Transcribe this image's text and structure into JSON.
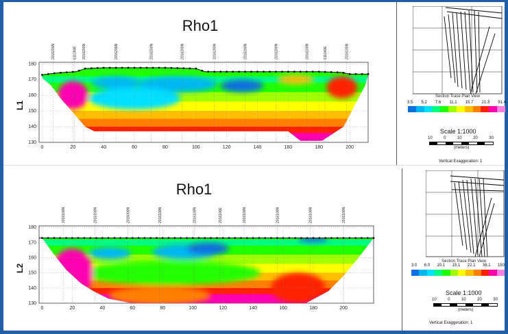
{
  "colors": {
    "background_frame": "#1f5fa8",
    "palette": [
      "#00b7f2",
      "#0a6fe0",
      "#0000c8",
      "#00e0ff",
      "#00ff80",
      "#20ff00",
      "#a0ff00",
      "#ffff00",
      "#ffbf00",
      "#ff8000",
      "#ff2000",
      "#ff00b0",
      "#ff80e0"
    ]
  },
  "chart_data": [
    {
      "type": "heatmap",
      "title": "Rho1",
      "ylabel": "L1",
      "xlabel": "",
      "x_ticks": [
        "0",
        "20",
        "40",
        "60",
        "80",
        "100",
        "120",
        "140",
        "160",
        "180",
        "200"
      ],
      "y_ticks": [
        "130",
        "140",
        "150",
        "160",
        "170",
        "180"
      ],
      "xlim": [
        -2,
        212
      ],
      "ylim": [
        130,
        181
      ],
      "station_labels": [
        "2016234N",
        "611280E",
        "2016200N",
        "2016200N",
        "2016200N",
        "2016200N",
        "2016240N",
        "2016200N",
        "2016200N",
        "2016100N",
        "611240E",
        "2016100N"
      ],
      "station_x": [
        7,
        21,
        27,
        48,
        71,
        91,
        112,
        132,
        152,
        172,
        184,
        198
      ],
      "surface": [
        [
          0,
          173
        ],
        [
          8,
          174
        ],
        [
          14,
          174.5
        ],
        [
          22,
          175
        ],
        [
          28,
          177
        ],
        [
          40,
          177.5
        ],
        [
          60,
          177.5
        ],
        [
          80,
          177.5
        ],
        [
          100,
          177
        ],
        [
          106,
          175
        ],
        [
          120,
          175
        ],
        [
          140,
          175
        ],
        [
          160,
          175
        ],
        [
          180,
          175
        ],
        [
          195,
          174.5
        ],
        [
          200,
          173.5
        ],
        [
          212,
          173.5
        ]
      ],
      "bottom": [
        [
          0,
          171
        ],
        [
          6,
          166
        ],
        [
          12,
          158
        ],
        [
          20,
          149
        ],
        [
          28,
          140
        ],
        [
          34,
          137
        ],
        [
          100,
          137
        ],
        [
          160,
          137
        ],
        [
          168,
          131
        ],
        [
          182,
          131
        ],
        [
          196,
          140
        ],
        [
          204,
          155
        ],
        [
          210,
          166
        ],
        [
          212,
          173
        ]
      ],
      "anomalies": [
        {
          "x": 48,
          "y": 168,
          "rx": 16,
          "ry": 4,
          "level": 0
        },
        {
          "x": 88,
          "y": 167,
          "rx": 26,
          "ry": 5,
          "level": 0
        },
        {
          "x": 130,
          "y": 166,
          "rx": 14,
          "ry": 4,
          "level": 1
        },
        {
          "x": 60,
          "y": 158,
          "rx": 30,
          "ry": 7,
          "level": 3
        },
        {
          "x": 165,
          "y": 170,
          "rx": 12,
          "ry": 3,
          "level": 8
        },
        {
          "x": 195,
          "y": 165,
          "rx": 10,
          "ry": 7,
          "level": 10
        },
        {
          "x": 20,
          "y": 160,
          "rx": 10,
          "ry": 9,
          "level": 11
        }
      ]
    },
    {
      "type": "heatmap",
      "title": "Rho1",
      "ylabel": "L2",
      "xlabel": "",
      "x_ticks": [
        "0",
        "20",
        "40",
        "60",
        "80",
        "100",
        "120",
        "140",
        "160",
        "180",
        "200"
      ],
      "y_ticks": [
        "130",
        "140",
        "150",
        "160",
        "170",
        "180"
      ],
      "xlim": [
        -2,
        220
      ],
      "ylim": [
        130,
        181
      ],
      "station_labels": [
        "2016100N",
        "2016100N",
        "2016000N",
        "2016100N",
        "2016100N",
        "2016100E",
        "2016100N",
        "2016100N",
        "2016100N",
        "2016100N"
      ],
      "station_x": [
        14,
        35,
        57,
        78,
        101,
        118,
        134,
        156,
        178,
        200
      ],
      "surface": [
        [
          -2,
          173
        ],
        [
          220,
          173
        ]
      ],
      "bottom": [
        [
          0,
          173
        ],
        [
          8,
          162
        ],
        [
          16,
          152
        ],
        [
          26,
          143
        ],
        [
          34,
          138
        ],
        [
          44,
          133
        ],
        [
          60,
          130
        ],
        [
          110,
          130
        ],
        [
          150,
          130
        ],
        [
          175,
          130
        ],
        [
          190,
          138
        ],
        [
          200,
          148
        ],
        [
          210,
          160
        ],
        [
          220,
          173
        ]
      ],
      "anomalies": [
        {
          "x": 45,
          "y": 163,
          "rx": 14,
          "ry": 4,
          "level": 0
        },
        {
          "x": 95,
          "y": 164,
          "rx": 22,
          "ry": 5,
          "level": 0
        },
        {
          "x": 110,
          "y": 166,
          "rx": 14,
          "ry": 4,
          "level": 1
        },
        {
          "x": 180,
          "y": 172,
          "rx": 10,
          "ry": 2,
          "level": 1
        },
        {
          "x": 85,
          "y": 150,
          "rx": 60,
          "ry": 8,
          "level": 5
        },
        {
          "x": 78,
          "y": 135,
          "rx": 34,
          "ry": 6,
          "level": 9
        },
        {
          "x": 170,
          "y": 140,
          "rx": 18,
          "ry": 10,
          "level": 10
        },
        {
          "x": 20,
          "y": 150,
          "rx": 14,
          "ry": 16,
          "level": 11
        }
      ]
    }
  ],
  "side_panels": [
    {
      "legend_title": "Section Trace Plan View",
      "legend_values": [
        "3.5",
        "5.2",
        "7.6",
        "11.1",
        "15.7",
        "21.3",
        "91.4"
      ],
      "scale_label": "Scale 1:1000",
      "scale_ticks": [
        "10",
        "0",
        "10",
        "20",
        "30"
      ],
      "scale_unit": "(meters)",
      "vertical_exaggeration": "Vertical Exaggeration: 1"
    },
    {
      "legend_title": "Section Trace Plan View",
      "legend_values": [
        "3.0",
        "6.0",
        "10.1",
        "15.1",
        "22.1",
        "36.1",
        "150"
      ],
      "scale_label": "Scale 1:1000",
      "scale_ticks": [
        "10",
        "0",
        "10",
        "20",
        "30"
      ],
      "scale_unit": "(meters)",
      "vertical_exaggeration": "Vertical Exaggeration: 1"
    }
  ]
}
